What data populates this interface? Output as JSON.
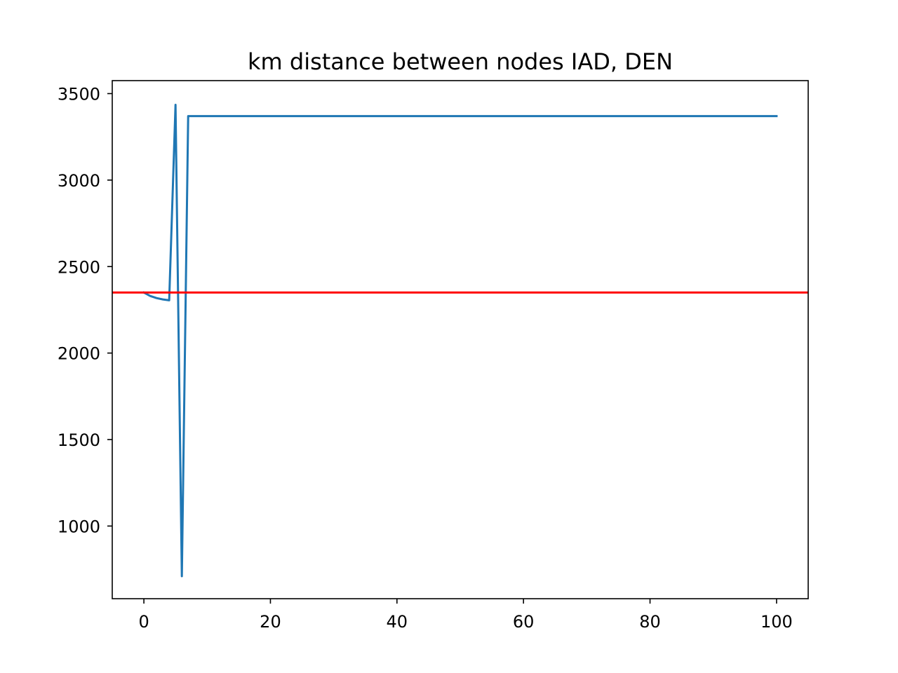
{
  "chart_data": {
    "type": "line",
    "title": "km distance between nodes IAD, DEN",
    "xlabel": "",
    "ylabel": "",
    "xlim": [
      -5,
      105
    ],
    "ylim": [
      580,
      3575
    ],
    "x_ticks": [
      0,
      20,
      40,
      60,
      80,
      100
    ],
    "x_tick_labels": [
      "0",
      "20",
      "40",
      "60",
      "80",
      "100"
    ],
    "y_ticks": [
      1000,
      1500,
      2000,
      2500,
      3000,
      3500
    ],
    "y_tick_labels": [
      "1000",
      "1500",
      "2000",
      "2500",
      "3000",
      "3500"
    ],
    "grid": false,
    "series": [
      {
        "color": "#1f77b4",
        "x": [
          0,
          1,
          2,
          3,
          4,
          5,
          6,
          7,
          100
        ],
        "y": [
          2350,
          2330,
          2318,
          2310,
          2305,
          3435,
          710,
          3370,
          3370
        ]
      }
    ],
    "reference_lines": [
      {
        "orientation": "horizontal",
        "y": 2350,
        "color": "#ff0000"
      }
    ]
  }
}
